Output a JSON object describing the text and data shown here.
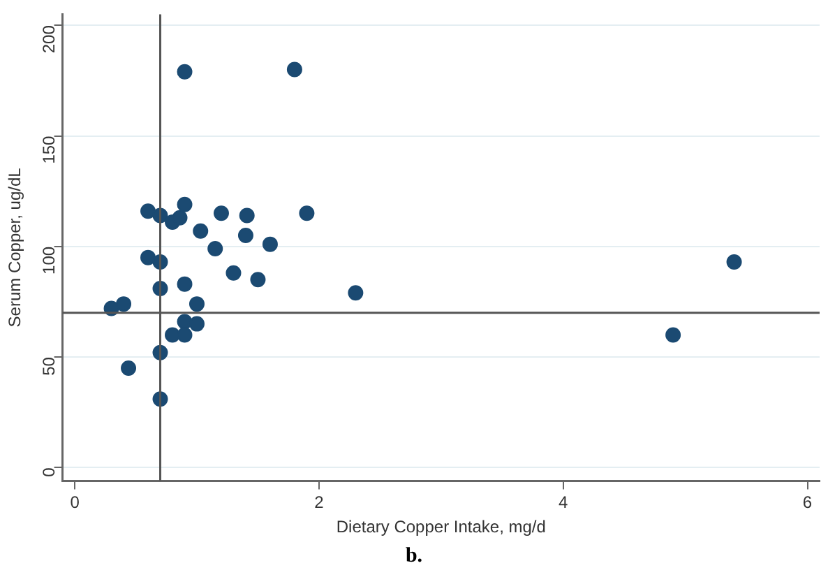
{
  "chart_data": {
    "type": "scatter",
    "xlabel": "Dietary Copper Intake, mg/d",
    "ylabel": "Serum Copper, ug/dL",
    "annotations": [
      "b."
    ],
    "x": [
      0.9,
      1.8,
      0.6,
      0.7,
      0.8,
      0.86,
      0.9,
      1.2,
      1.41,
      1.9,
      1.03,
      1.4,
      1.15,
      1.6,
      0.6,
      0.7,
      1.3,
      0.9,
      1.5,
      0.7,
      2.3,
      5.4,
      0.3,
      0.4,
      1.0,
      0.9,
      1.0,
      0.8,
      0.9,
      4.9,
      0.7,
      0.44,
      0.7
    ],
    "series": [
      {
        "color": "#1b4a72",
        "values": [
          179,
          180,
          116,
          114,
          111,
          113,
          119,
          115,
          114,
          115,
          107,
          105,
          99,
          101,
          95,
          93,
          88,
          83,
          85,
          81,
          79,
          93,
          72,
          74,
          74,
          66,
          65,
          60,
          60,
          60,
          52,
          45,
          31
        ]
      }
    ],
    "xlim": [
      -0.1,
      6.1
    ],
    "ylim": [
      -6,
      205
    ],
    "xticks": [
      0,
      2,
      4,
      6
    ],
    "yticks": [
      0,
      50,
      100,
      150,
      200
    ],
    "ref_lines": [
      {
        "axis": "x",
        "value": 0.7,
        "color": "#555555"
      },
      {
        "axis": "y",
        "value": 70,
        "color": "#555555"
      }
    ],
    "grid": "y",
    "marker": "circle",
    "legend": false
  }
}
